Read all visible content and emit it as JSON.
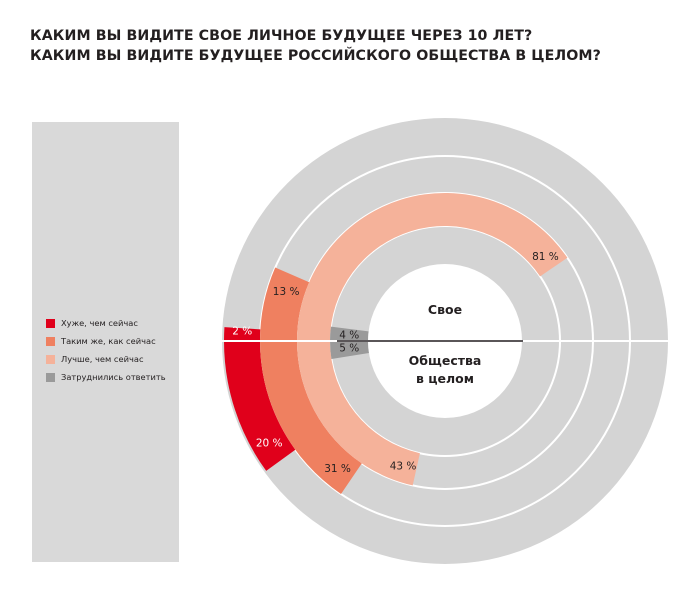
{
  "title": {
    "line1": "КАКИМ ВЫ ВИДИТЕ СВОЕ ЛИЧНОЕ БУДУЩЕЕ ЧЕРЕЗ 10 ЛЕТ?",
    "line2": "КАКИМ ВЫ ВИДИТЕ БУДУЩЕЕ РОССИЙСКОГО ОБЩЕСТВА В ЦЕЛОМ?"
  },
  "legend": [
    {
      "label": "Хуже, чем сейчас",
      "color": "#e0001b"
    },
    {
      "label": "Таким же, как сейчас",
      "color": "#ef8060"
    },
    {
      "label": "Лучше, чем сейчас",
      "color": "#f5b29a"
    },
    {
      "label": "Затруднились ответить",
      "color": "#9a9a9a"
    }
  ],
  "chart_data": {
    "type": "pie",
    "categories": [
      "Хуже, чем сейчас",
      "Таким же, как сейчас",
      "Лучше, чем сейчас",
      "Затруднились ответить"
    ],
    "colors": [
      "#e0001b",
      "#ef8060",
      "#f5b29a",
      "#9a9a9a"
    ],
    "track_color": "#d4d4d4",
    "groups": [
      {
        "name": "Свое",
        "position": "top",
        "values": [
          2,
          13,
          81,
          4
        ],
        "labels": [
          "2 %",
          "13 %",
          "81 %",
          "4 %"
        ]
      },
      {
        "name": "Общества\nв целом",
        "position": "bottom",
        "values": [
          20,
          31,
          43,
          5
        ],
        "labels": [
          "20 %",
          "31 %",
          "43 %",
          "5 %"
        ]
      }
    ]
  }
}
